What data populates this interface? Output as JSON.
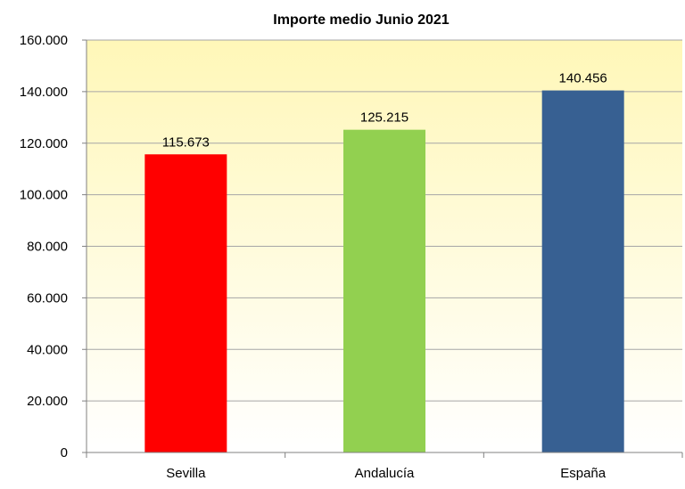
{
  "chart_data": {
    "type": "bar",
    "title": "Importe medio Junio 2021",
    "xlabel": "",
    "ylabel": "",
    "categories": [
      "Sevilla",
      "Andalucía",
      "España"
    ],
    "values": [
      115673,
      125215,
      140456
    ],
    "value_labels": [
      "115.673",
      "125.215",
      "140.456"
    ],
    "bar_colors": [
      "#ff0000",
      "#92d050",
      "#376092"
    ],
    "ylim": [
      0,
      160000
    ],
    "yticks": [
      0,
      20000,
      40000,
      60000,
      80000,
      100000,
      120000,
      140000,
      160000
    ],
    "ytick_labels": [
      "0",
      "20.000",
      "40.000",
      "60.000",
      "80.000",
      "100.000",
      "120.000",
      "140.000",
      "160.000"
    ],
    "grid": true,
    "background": {
      "top": "#fff7b8",
      "bottom": "#ffffff"
    },
    "gridline_color": "#a6a6a6",
    "legend": "none"
  }
}
